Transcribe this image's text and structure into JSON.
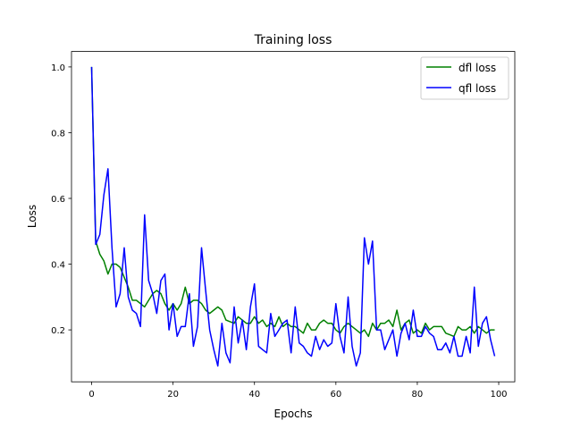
{
  "chart_data": {
    "type": "line",
    "title": "Training loss",
    "xlabel": "Epochs",
    "ylabel": "Loss",
    "xlim": [
      -4.95,
      103.95
    ],
    "ylim": [
      0.042,
      1.047
    ],
    "xticks": [
      "0",
      "20",
      "40",
      "60",
      "80",
      "100"
    ],
    "yticks": [
      "0.2",
      "0.4",
      "0.6",
      "0.8",
      "1.0"
    ],
    "grid": false,
    "legend": "top-right",
    "series": [
      {
        "name": "dfl loss",
        "color": "#008000",
        "values": [
          1.0,
          0.47,
          0.43,
          0.41,
          0.37,
          0.4,
          0.4,
          0.39,
          0.36,
          0.33,
          0.29,
          0.29,
          0.28,
          0.27,
          0.29,
          0.31,
          0.32,
          0.31,
          0.28,
          0.26,
          0.28,
          0.26,
          0.28,
          0.33,
          0.28,
          0.29,
          0.29,
          0.28,
          0.26,
          0.25,
          0.26,
          0.27,
          0.26,
          0.23,
          0.225,
          0.22,
          0.24,
          0.23,
          0.22,
          0.22,
          0.24,
          0.22,
          0.23,
          0.21,
          0.22,
          0.21,
          0.24,
          0.21,
          0.22,
          0.21,
          0.21,
          0.2,
          0.19,
          0.22,
          0.2,
          0.2,
          0.22,
          0.23,
          0.22,
          0.22,
          0.2,
          0.19,
          0.21,
          0.22,
          0.21,
          0.2,
          0.19,
          0.2,
          0.18,
          0.22,
          0.2,
          0.22,
          0.22,
          0.23,
          0.21,
          0.26,
          0.2,
          0.22,
          0.23,
          0.19,
          0.2,
          0.19,
          0.22,
          0.2,
          0.21,
          0.21,
          0.21,
          0.19,
          0.185,
          0.18,
          0.21,
          0.2,
          0.2,
          0.21,
          0.19,
          0.21,
          0.2,
          0.19,
          0.2,
          0.2
        ]
      },
      {
        "name": "qfl loss",
        "color": "#0000ff",
        "values": [
          1.0,
          0.46,
          0.49,
          0.61,
          0.69,
          0.45,
          0.27,
          0.31,
          0.45,
          0.3,
          0.26,
          0.25,
          0.21,
          0.55,
          0.35,
          0.31,
          0.25,
          0.35,
          0.37,
          0.2,
          0.28,
          0.18,
          0.21,
          0.21,
          0.31,
          0.15,
          0.21,
          0.45,
          0.32,
          0.2,
          0.14,
          0.09,
          0.22,
          0.13,
          0.1,
          0.27,
          0.16,
          0.23,
          0.14,
          0.27,
          0.34,
          0.15,
          0.14,
          0.13,
          0.25,
          0.18,
          0.2,
          0.22,
          0.23,
          0.13,
          0.27,
          0.16,
          0.15,
          0.13,
          0.12,
          0.18,
          0.14,
          0.17,
          0.15,
          0.16,
          0.28,
          0.18,
          0.13,
          0.3,
          0.15,
          0.09,
          0.13,
          0.48,
          0.4,
          0.47,
          0.2,
          0.2,
          0.14,
          0.17,
          0.2,
          0.12,
          0.19,
          0.22,
          0.17,
          0.26,
          0.18,
          0.18,
          0.21,
          0.19,
          0.18,
          0.14,
          0.14,
          0.16,
          0.13,
          0.18,
          0.12,
          0.12,
          0.18,
          0.13,
          0.33,
          0.15,
          0.22,
          0.24,
          0.17,
          0.12
        ]
      }
    ]
  }
}
